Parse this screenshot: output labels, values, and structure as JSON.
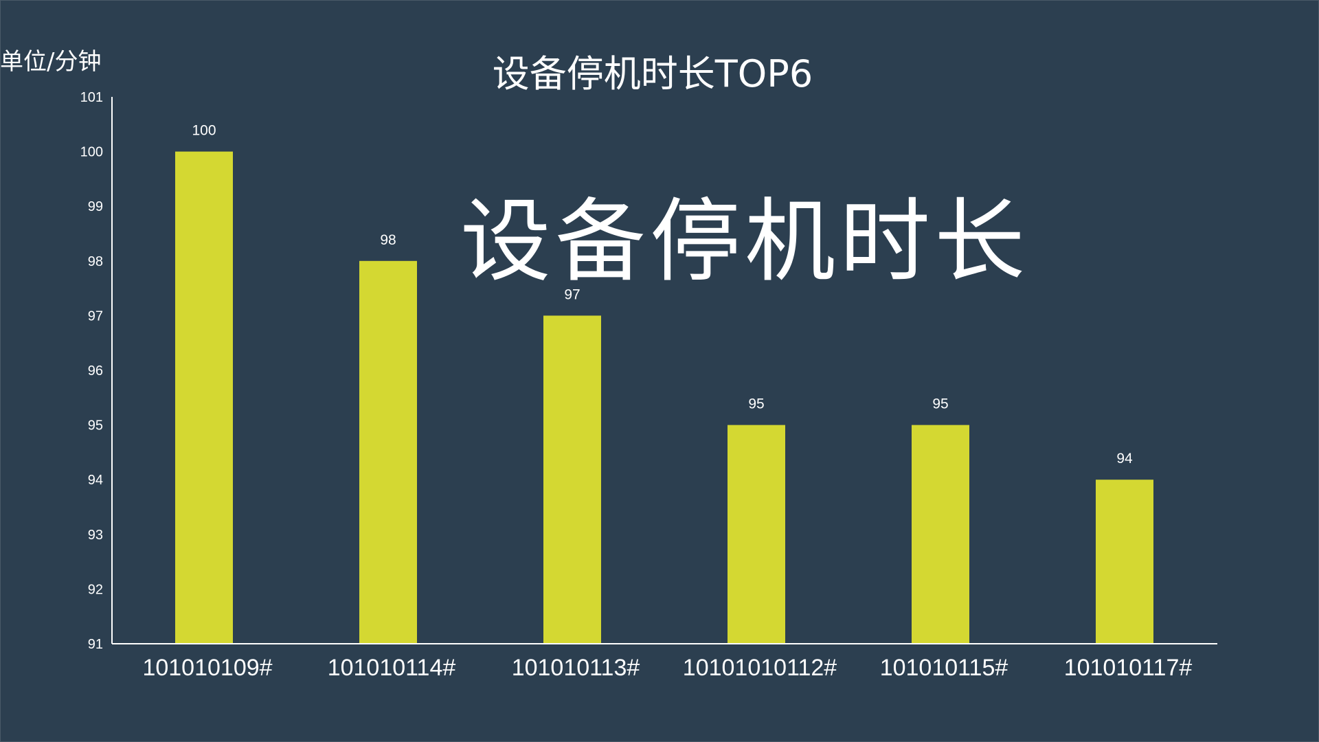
{
  "unit_label": "单位/分钟",
  "overlay_caption": "设备停机时长",
  "colors": {
    "background": "#2c3f50",
    "bar": "#d4d832",
    "axis": "#ffffff",
    "text": "#ffffff"
  },
  "chart_data": {
    "type": "bar",
    "title": "设备停机时长TOP6",
    "xlabel": "",
    "ylabel": "单位/分钟",
    "categories": [
      "101010109#",
      "101010114#",
      "101010113#",
      "10101010112#",
      "101010115#",
      "101010117#"
    ],
    "values": [
      100,
      98,
      97,
      95,
      95,
      94
    ],
    "ylim": [
      91,
      101
    ],
    "yticks": [
      91,
      92,
      93,
      94,
      95,
      96,
      97,
      98,
      99,
      100,
      101
    ],
    "data_labels": true,
    "grid": false,
    "legend": "none"
  }
}
